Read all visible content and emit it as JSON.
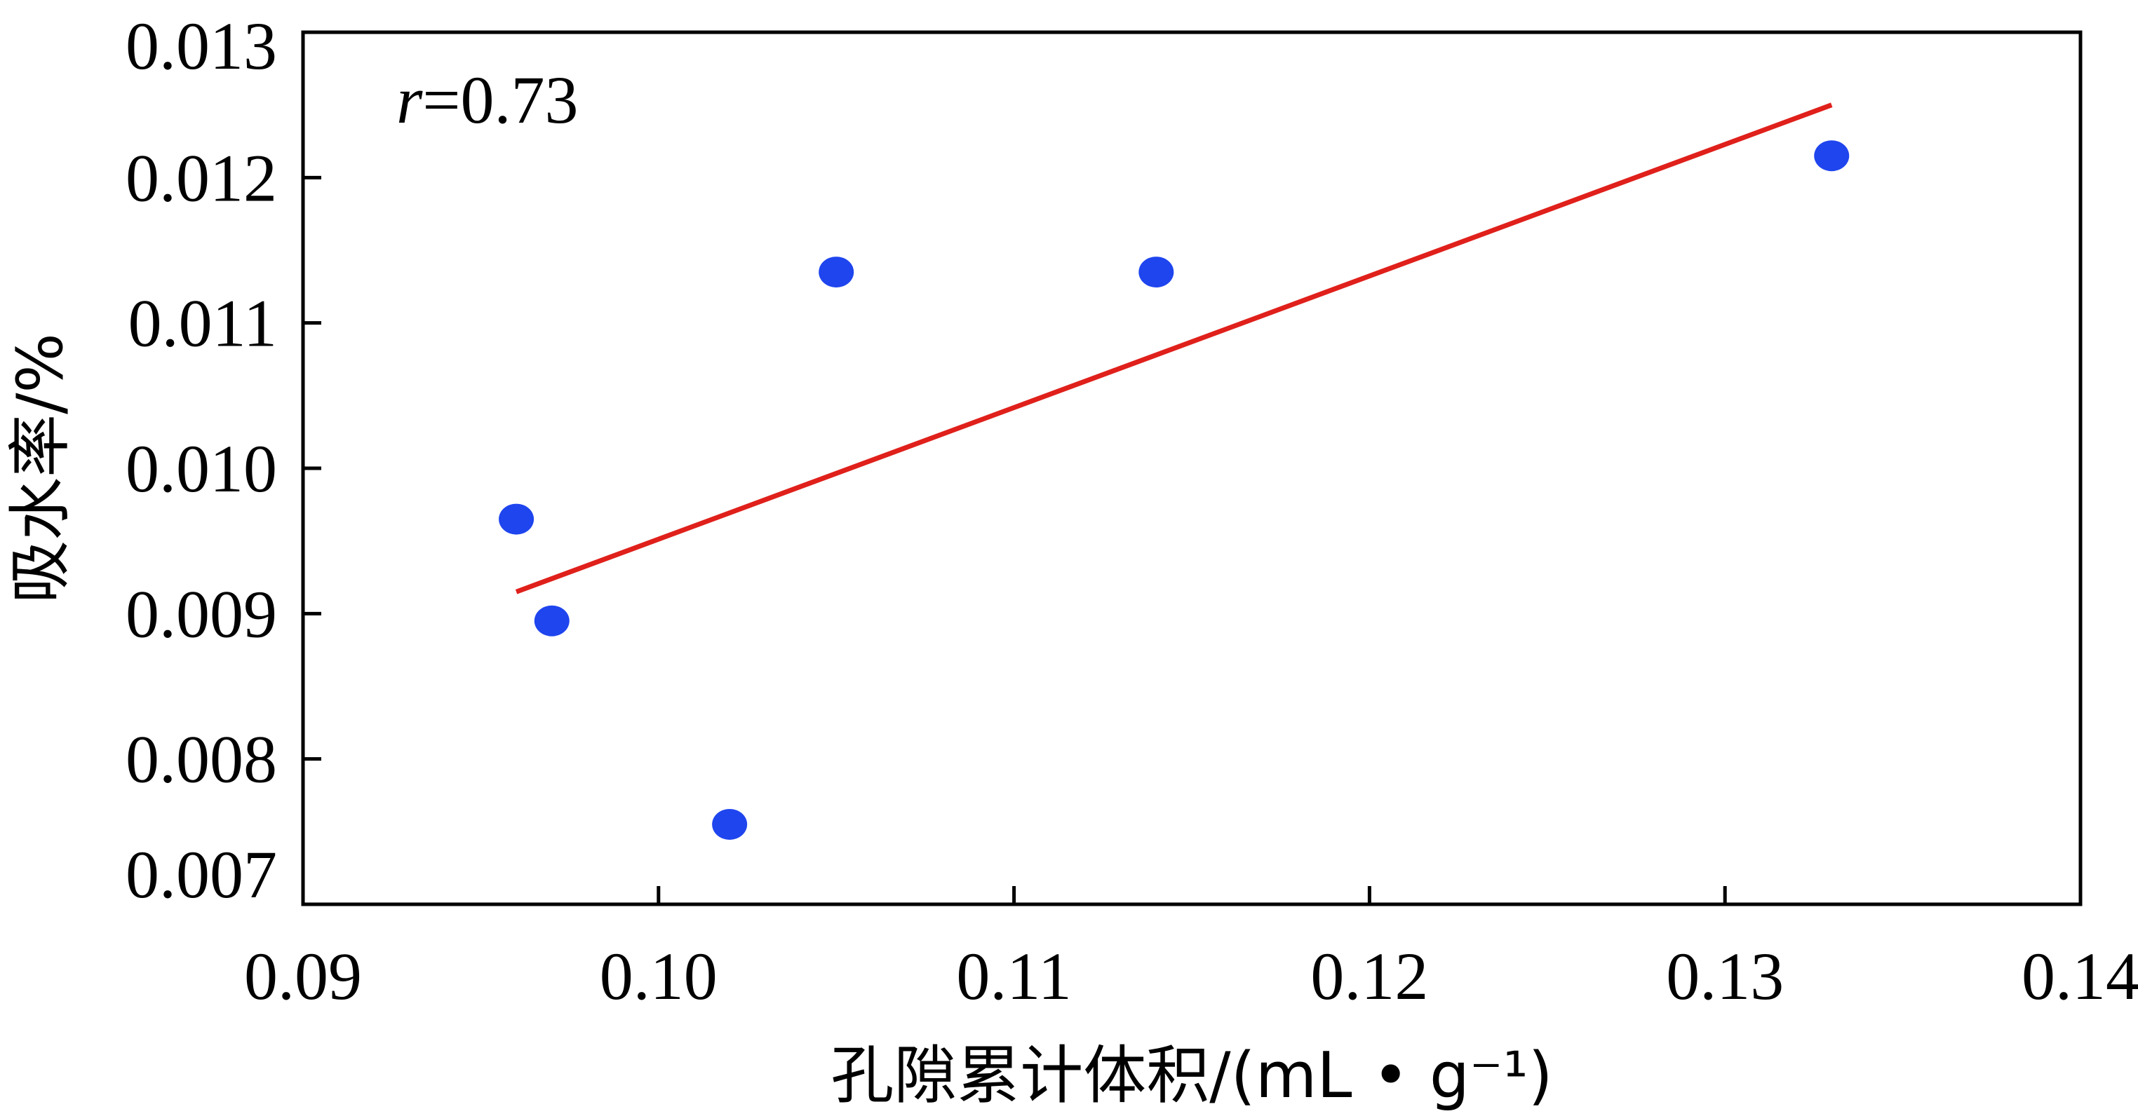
{
  "chart_data": {
    "type": "scatter",
    "xlabel": "孔隙累计体积/(mL • g⁻¹)",
    "ylabel": "吸水率/%",
    "xlim": [
      0.09,
      0.14
    ],
    "ylim": [
      0.007,
      0.013
    ],
    "x_ticks": [
      "0.09",
      "0.10",
      "0.11",
      "0.12",
      "0.13",
      "0.14"
    ],
    "x_tick_values": [
      0.09,
      0.1,
      0.11,
      0.12,
      0.13,
      0.14
    ],
    "y_ticks": [
      "0.007",
      "0.008",
      "0.009",
      "0.010",
      "0.011",
      "0.012",
      "0.013"
    ],
    "y_tick_values": [
      0.007,
      0.008,
      0.009,
      0.01,
      0.011,
      0.012,
      0.013
    ],
    "grid": false,
    "annotation": {
      "variable": "r",
      "text": "=0.73"
    },
    "points": [
      {
        "x": 0.096,
        "y": 0.00965
      },
      {
        "x": 0.097,
        "y": 0.00895
      },
      {
        "x": 0.102,
        "y": 0.00755
      },
      {
        "x": 0.105,
        "y": 0.01135
      },
      {
        "x": 0.114,
        "y": 0.01135
      },
      {
        "x": 0.133,
        "y": 0.01215
      }
    ],
    "fit_line": {
      "x": [
        0.096,
        0.133
      ],
      "y": [
        0.00915,
        0.0125
      ]
    },
    "colors": {
      "points": "#1f45ee",
      "fit_line": "#e0201b",
      "axes": "#000000"
    }
  }
}
